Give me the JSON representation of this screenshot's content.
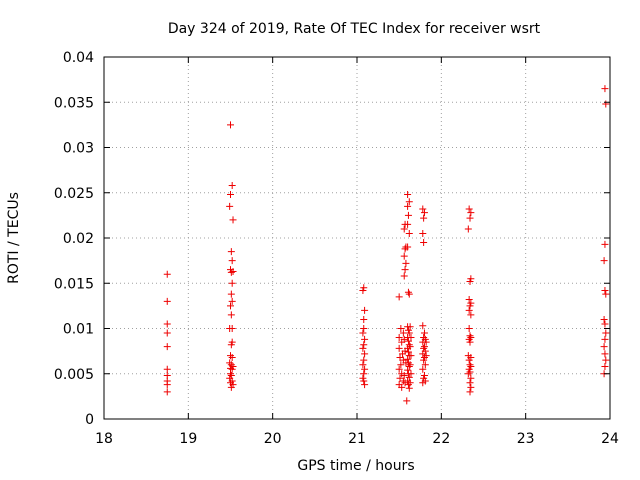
{
  "chart_data": {
    "type": "scatter",
    "title": "Day 324 of 2019, Rate Of TEC Index for receiver wsrt",
    "xlabel": "GPS time / hours",
    "ylabel": "ROTI / TECUs",
    "xlim": [
      18,
      24
    ],
    "ylim": [
      0,
      0.04
    ],
    "xticks": [
      18,
      19,
      20,
      21,
      22,
      23,
      24
    ],
    "yticks": [
      0,
      0.005,
      0.01,
      0.015,
      0.02,
      0.025,
      0.03,
      0.035,
      0.04
    ],
    "xtick_labels": [
      "18",
      "19",
      "20",
      "21",
      "22",
      "23",
      "24"
    ],
    "ytick_labels": [
      "0",
      "0.005",
      "0.01",
      "0.015",
      "0.02",
      "0.025",
      "0.03",
      "0.035",
      "0.04"
    ],
    "grid": true,
    "marker": "plus",
    "color": "#ee0000",
    "series": [
      {
        "name": "ROTI",
        "points": [
          [
            18.75,
            0.016
          ],
          [
            18.75,
            0.013
          ],
          [
            18.75,
            0.0105
          ],
          [
            18.75,
            0.0095
          ],
          [
            18.75,
            0.008
          ],
          [
            18.75,
            0.0055
          ],
          [
            18.75,
            0.0048
          ],
          [
            18.75,
            0.0042
          ],
          [
            18.75,
            0.0038
          ],
          [
            18.75,
            0.003
          ],
          [
            19.5,
            0.0325
          ],
          [
            19.52,
            0.0258
          ],
          [
            19.5,
            0.0248
          ],
          [
            19.49,
            0.0235
          ],
          [
            19.53,
            0.022
          ],
          [
            19.51,
            0.0185
          ],
          [
            19.52,
            0.0175
          ],
          [
            19.5,
            0.0165
          ],
          [
            19.51,
            0.0162
          ],
          [
            19.53,
            0.0163
          ],
          [
            19.52,
            0.015
          ],
          [
            19.51,
            0.0138
          ],
          [
            19.52,
            0.013
          ],
          [
            19.5,
            0.0125
          ],
          [
            19.51,
            0.0115
          ],
          [
            19.49,
            0.01
          ],
          [
            19.52,
            0.01
          ],
          [
            19.52,
            0.0085
          ],
          [
            19.51,
            0.0082
          ],
          [
            19.5,
            0.007
          ],
          [
            19.52,
            0.0068
          ],
          [
            19.49,
            0.0062
          ],
          [
            19.51,
            0.006
          ],
          [
            19.53,
            0.0058
          ],
          [
            19.5,
            0.0056
          ],
          [
            19.52,
            0.0055
          ],
          [
            19.5,
            0.005
          ],
          [
            19.51,
            0.0048
          ],
          [
            19.49,
            0.0045
          ],
          [
            19.52,
            0.0042
          ],
          [
            19.5,
            0.004
          ],
          [
            19.53,
            0.0038
          ],
          [
            19.51,
            0.0035
          ],
          [
            21.08,
            0.0145
          ],
          [
            21.07,
            0.0142
          ],
          [
            21.09,
            0.012
          ],
          [
            21.08,
            0.011
          ],
          [
            21.08,
            0.01
          ],
          [
            21.07,
            0.0095
          ],
          [
            21.09,
            0.0088
          ],
          [
            21.08,
            0.0082
          ],
          [
            21.07,
            0.0078
          ],
          [
            21.09,
            0.0072
          ],
          [
            21.08,
            0.0065
          ],
          [
            21.07,
            0.006
          ],
          [
            21.09,
            0.0055
          ],
          [
            21.08,
            0.005
          ],
          [
            21.07,
            0.0045
          ],
          [
            21.08,
            0.0042
          ],
          [
            21.09,
            0.0038
          ],
          [
            21.5,
            0.0135
          ],
          [
            21.52,
            0.01
          ],
          [
            21.55,
            0.0095
          ],
          [
            21.5,
            0.009
          ],
          [
            21.53,
            0.0085
          ],
          [
            21.5,
            0.0078
          ],
          [
            21.54,
            0.0072
          ],
          [
            21.51,
            0.0068
          ],
          [
            21.55,
            0.0065
          ],
          [
            21.52,
            0.006
          ],
          [
            21.5,
            0.0055
          ],
          [
            21.53,
            0.005
          ],
          [
            21.51,
            0.0045
          ],
          [
            21.55,
            0.0042
          ],
          [
            21.5,
            0.0038
          ],
          [
            21.53,
            0.0035
          ],
          [
            21.57,
            0.0215
          ],
          [
            21.56,
            0.021
          ],
          [
            21.58,
            0.019
          ],
          [
            21.57,
            0.0188
          ],
          [
            21.56,
            0.018
          ],
          [
            21.58,
            0.0172
          ],
          [
            21.57,
            0.0165
          ],
          [
            21.56,
            0.0158
          ],
          [
            21.6,
            0.0248
          ],
          [
            21.62,
            0.024
          ],
          [
            21.6,
            0.0235
          ],
          [
            21.61,
            0.0225
          ],
          [
            21.6,
            0.0215
          ],
          [
            21.62,
            0.0205
          ],
          [
            21.6,
            0.019
          ],
          [
            21.61,
            0.014
          ],
          [
            21.62,
            0.0138
          ],
          [
            21.6,
            0.0102
          ],
          [
            21.61,
            0.0098
          ],
          [
            21.62,
            0.0095
          ],
          [
            21.6,
            0.009
          ],
          [
            21.61,
            0.0086
          ],
          [
            21.62,
            0.0082
          ],
          [
            21.6,
            0.0078
          ],
          [
            21.61,
            0.0074
          ],
          [
            21.62,
            0.007
          ],
          [
            21.6,
            0.0066
          ],
          [
            21.61,
            0.0062
          ],
          [
            21.62,
            0.0058
          ],
          [
            21.6,
            0.0054
          ],
          [
            21.61,
            0.005
          ],
          [
            21.62,
            0.0046
          ],
          [
            21.6,
            0.0042
          ],
          [
            21.61,
            0.0038
          ],
          [
            21.62,
            0.0034
          ],
          [
            21.59,
            0.002
          ],
          [
            21.63,
            0.0102
          ],
          [
            21.64,
            0.009
          ],
          [
            21.63,
            0.008
          ],
          [
            21.64,
            0.007
          ],
          [
            21.63,
            0.006
          ],
          [
            21.64,
            0.005
          ],
          [
            21.63,
            0.004
          ],
          [
            21.56,
            0.0088
          ],
          [
            21.57,
            0.0075
          ],
          [
            21.58,
            0.0062
          ],
          [
            21.56,
            0.0048
          ],
          [
            21.57,
            0.004
          ],
          [
            21.78,
            0.0232
          ],
          [
            21.8,
            0.0228
          ],
          [
            21.79,
            0.0222
          ],
          [
            21.78,
            0.0205
          ],
          [
            21.79,
            0.0195
          ],
          [
            21.78,
            0.0103
          ],
          [
            21.8,
            0.0095
          ],
          [
            21.79,
            0.009
          ],
          [
            21.81,
            0.0088
          ],
          [
            21.78,
            0.0085
          ],
          [
            21.8,
            0.008
          ],
          [
            21.79,
            0.0078
          ],
          [
            21.81,
            0.0075
          ],
          [
            21.78,
            0.0072
          ],
          [
            21.8,
            0.0068
          ],
          [
            21.79,
            0.0065
          ],
          [
            21.81,
            0.006
          ],
          [
            21.78,
            0.0055
          ],
          [
            21.8,
            0.0048
          ],
          [
            21.79,
            0.0045
          ],
          [
            21.81,
            0.0042
          ],
          [
            21.78,
            0.004
          ],
          [
            21.82,
            0.0085
          ],
          [
            21.82,
            0.007
          ],
          [
            22.33,
            0.0232
          ],
          [
            22.35,
            0.0228
          ],
          [
            22.34,
            0.0222
          ],
          [
            22.32,
            0.021
          ],
          [
            22.35,
            0.0155
          ],
          [
            22.34,
            0.0152
          ],
          [
            22.33,
            0.0132
          ],
          [
            22.35,
            0.0128
          ],
          [
            22.34,
            0.0125
          ],
          [
            22.33,
            0.012
          ],
          [
            22.35,
            0.0115
          ],
          [
            22.33,
            0.01
          ],
          [
            22.34,
            0.0092
          ],
          [
            22.35,
            0.009
          ],
          [
            22.33,
            0.0088
          ],
          [
            22.34,
            0.0085
          ],
          [
            22.32,
            0.007
          ],
          [
            22.35,
            0.0068
          ],
          [
            22.33,
            0.0065
          ],
          [
            22.34,
            0.006
          ],
          [
            22.35,
            0.0058
          ],
          [
            22.33,
            0.0055
          ],
          [
            22.34,
            0.0052
          ],
          [
            22.32,
            0.005
          ],
          [
            22.35,
            0.0045
          ],
          [
            22.34,
            0.004
          ],
          [
            22.35,
            0.0035
          ],
          [
            22.34,
            0.003
          ],
          [
            23.94,
            0.0365
          ],
          [
            23.95,
            0.0348
          ],
          [
            23.94,
            0.0193
          ],
          [
            23.93,
            0.0175
          ],
          [
            23.94,
            0.0142
          ],
          [
            23.95,
            0.0138
          ],
          [
            23.93,
            0.011
          ],
          [
            23.94,
            0.0105
          ],
          [
            23.95,
            0.0095
          ],
          [
            23.94,
            0.0088
          ],
          [
            23.93,
            0.008
          ],
          [
            23.94,
            0.0072
          ],
          [
            23.95,
            0.0065
          ],
          [
            23.94,
            0.0058
          ],
          [
            23.93,
            0.005
          ]
        ]
      }
    ]
  }
}
